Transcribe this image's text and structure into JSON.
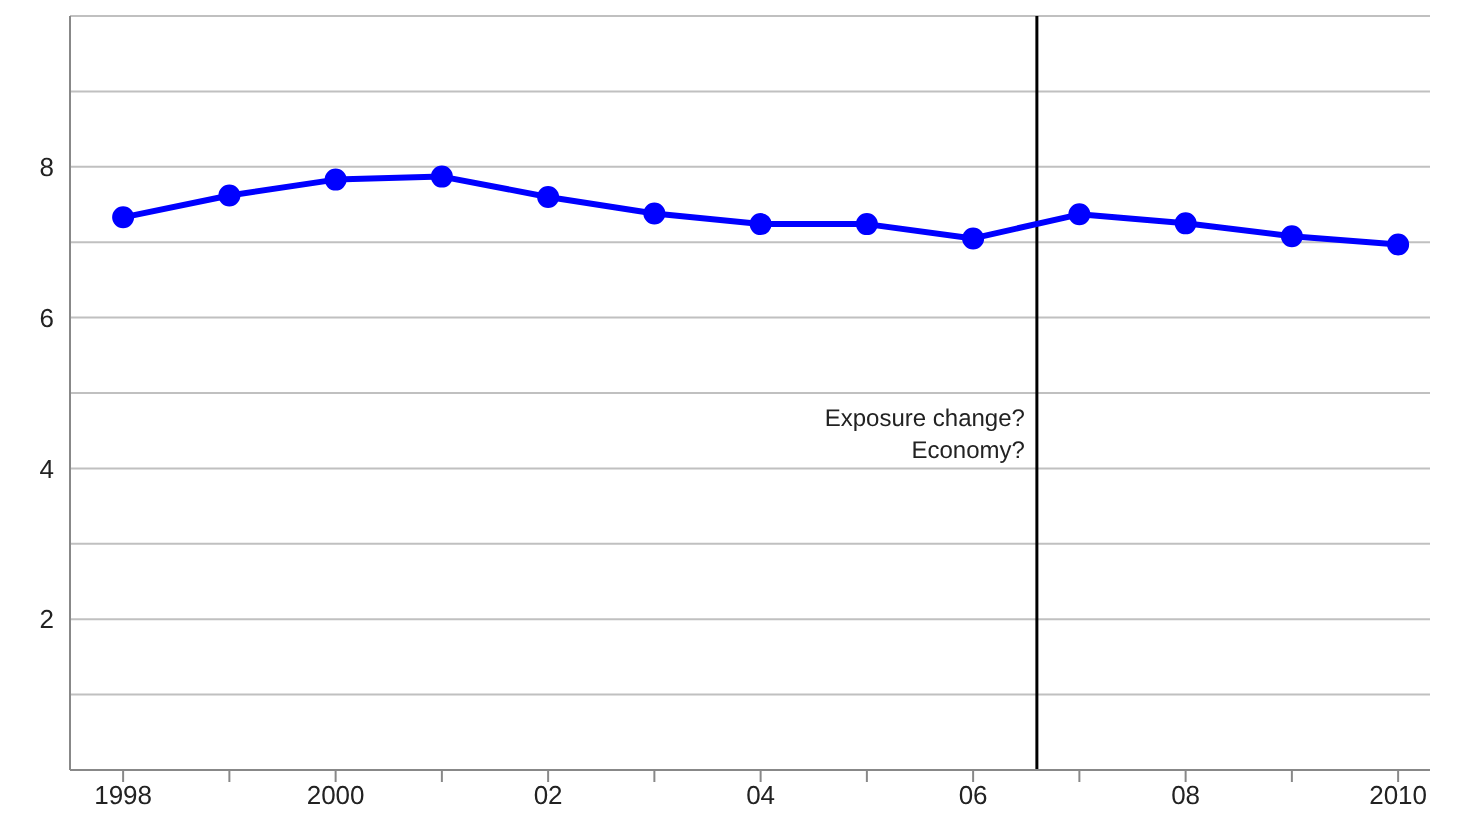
{
  "chart_data": {
    "type": "line",
    "x": [
      1998,
      1999,
      2000,
      2001,
      2002,
      2003,
      2004,
      2005,
      2006,
      2007,
      2008,
      2009,
      2010
    ],
    "series": [
      {
        "color": "#0000ff",
        "values": [
          7.33,
          7.62,
          7.83,
          7.87,
          7.6,
          7.38,
          7.24,
          7.24,
          7.05,
          7.37,
          7.25,
          7.08,
          6.97
        ]
      }
    ],
    "xlim": [
      1997.5,
      2010.3
    ],
    "xticks": [
      1998,
      {
        "value": 1999,
        "label": null
      },
      2000,
      {
        "value": 2001,
        "label": null
      },
      {
        "value": 2002,
        "label": "02"
      },
      {
        "value": 2003,
        "label": null
      },
      {
        "value": 2004,
        "label": "04"
      },
      {
        "value": 2005,
        "label": null
      },
      {
        "value": 2006,
        "label": "06"
      },
      {
        "value": 2007,
        "label": null
      },
      {
        "value": 2008,
        "label": "08"
      },
      {
        "value": 2009,
        "label": null
      },
      2010
    ],
    "ylim": [
      0,
      10
    ],
    "yticks": [
      {
        "value": 0,
        "label": null
      },
      {
        "value": 1,
        "label": null
      },
      2,
      {
        "value": 3,
        "label": null
      },
      4,
      {
        "value": 5,
        "label": null
      },
      6,
      {
        "value": 7,
        "label": null
      },
      8,
      {
        "value": 9,
        "label": null
      },
      {
        "value": 10,
        "label": null
      }
    ],
    "grid": "y",
    "marker": "circle",
    "line_style": "solid",
    "legend": false,
    "ref_lines": [
      {
        "axis": "x",
        "value": 2006.6,
        "color": "#000000"
      }
    ],
    "annotations": [
      "Exposure change?",
      "Economy?"
    ]
  }
}
